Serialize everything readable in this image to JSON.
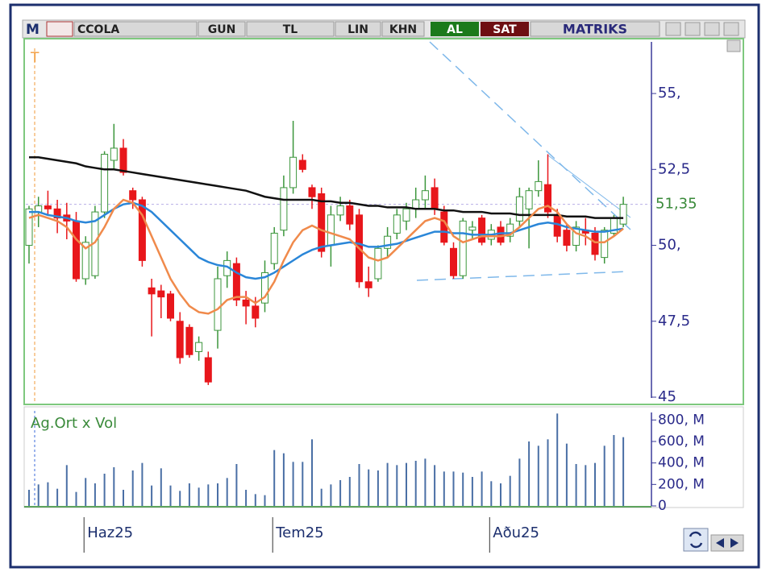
{
  "toolbar": {
    "menu": "M",
    "symbol": "CCOLA",
    "buttons": [
      "GUN",
      "TL",
      "LIN",
      "KHN"
    ],
    "buy": "AL",
    "sell": "SAT",
    "brand": "MATRIKS"
  },
  "chart_data": [
    {
      "type": "candlestick",
      "annotation": "T",
      "categories": [
        null,
        null,
        null,
        null,
        null,
        null,
        "Haz25",
        null,
        null,
        null,
        null,
        null,
        null,
        null,
        null,
        null,
        null,
        null,
        null,
        null,
        null,
        null,
        null,
        null,
        null,
        null,
        "Tem25",
        null,
        null,
        null,
        null,
        null,
        null,
        null,
        null,
        null,
        null,
        null,
        null,
        null,
        null,
        null,
        null,
        null,
        null,
        null,
        null,
        null,
        null,
        "Aðu25",
        null,
        null,
        null,
        null,
        null,
        null,
        null,
        null,
        null,
        null,
        null,
        null,
        null,
        null
      ],
      "open": [
        50.0,
        51.1,
        51.3,
        51.2,
        51.0,
        50.8,
        48.9,
        49.0,
        51.1,
        52.8,
        53.2,
        51.8,
        51.5,
        48.6,
        48.5,
        48.4,
        47.5,
        47.3,
        46.5,
        46.3,
        47.2,
        49.0,
        49.4,
        48.2,
        48.0,
        48.1,
        49.4,
        50.5,
        51.9,
        52.8,
        51.9,
        51.7,
        50.0,
        51.0,
        51.3,
        51.0,
        48.8,
        48.9,
        49.9,
        50.4,
        50.8,
        51.2,
        51.5,
        51.9,
        51.1,
        49.9,
        49.0,
        50.5,
        50.9,
        50.2,
        50.6,
        50.3,
        50.8,
        51.2,
        51.8,
        52.0,
        51.0,
        50.5,
        50.0,
        50.5,
        50.4,
        49.6,
        50.4,
        50.7
      ],
      "high": [
        51.3,
        51.6,
        51.8,
        51.5,
        51.4,
        51.1,
        50.3,
        51.3,
        53.1,
        54.0,
        53.5,
        51.9,
        51.6,
        48.9,
        48.7,
        48.5,
        47.8,
        47.4,
        47.0,
        46.5,
        49.3,
        49.8,
        49.6,
        48.5,
        48.3,
        49.5,
        50.6,
        52.3,
        54.1,
        53.0,
        52.0,
        51.9,
        51.3,
        51.6,
        51.5,
        51.2,
        49.3,
        50.0,
        50.6,
        51.2,
        51.4,
        51.9,
        52.3,
        52.2,
        51.3,
        50.1,
        50.9,
        50.8,
        51.0,
        50.7,
        50.8,
        50.9,
        51.9,
        51.9,
        52.8,
        53.0,
        51.2,
        50.7,
        50.8,
        50.9,
        50.6,
        50.6,
        51.0,
        51.6
      ],
      "low": [
        49.4,
        50.6,
        51.0,
        50.4,
        50.2,
        48.8,
        48.7,
        48.9,
        50.9,
        52.5,
        52.3,
        51.2,
        49.3,
        47.0,
        47.6,
        47.5,
        46.1,
        46.3,
        46.2,
        45.4,
        46.6,
        48.6,
        48.0,
        47.4,
        47.3,
        47.8,
        49.2,
        50.3,
        51.7,
        52.4,
        51.2,
        49.6,
        49.3,
        50.8,
        50.5,
        48.6,
        48.3,
        48.8,
        49.6,
        50.2,
        50.5,
        50.9,
        51.2,
        51.0,
        50.0,
        48.9,
        48.9,
        50.2,
        50.0,
        50.0,
        50.0,
        50.1,
        50.6,
        49.9,
        51.6,
        50.9,
        50.1,
        49.8,
        49.8,
        50.0,
        49.5,
        49.4,
        50.3,
        50.6
      ],
      "close": [
        51.2,
        51.3,
        51.2,
        50.9,
        50.8,
        48.9,
        50.1,
        51.1,
        53.0,
        53.2,
        52.4,
        51.5,
        49.5,
        48.4,
        48.3,
        47.6,
        46.3,
        46.4,
        46.8,
        45.5,
        48.9,
        49.5,
        48.2,
        48.0,
        47.6,
        49.1,
        50.4,
        51.9,
        52.9,
        52.5,
        51.6,
        49.8,
        51.0,
        51.3,
        50.7,
        48.8,
        48.6,
        49.9,
        50.3,
        51.0,
        51.2,
        51.5,
        51.8,
        51.2,
        50.1,
        49.0,
        50.8,
        50.6,
        50.1,
        50.5,
        50.1,
        50.7,
        51.6,
        51.8,
        52.1,
        51.1,
        50.3,
        50.0,
        50.6,
        50.4,
        49.7,
        50.5,
        50.9,
        51.35
      ],
      "up_color": "#3c963c",
      "down_color": "#e8161b",
      "series": [
        {
          "color": "#111111",
          "values": [
            52.9,
            52.9,
            52.85,
            52.8,
            52.75,
            52.7,
            52.6,
            52.55,
            52.5,
            52.5,
            52.45,
            52.4,
            52.35,
            52.3,
            52.25,
            52.2,
            52.15,
            52.1,
            52.05,
            52.0,
            51.95,
            51.9,
            51.85,
            51.8,
            51.7,
            51.6,
            51.55,
            51.5,
            51.5,
            51.5,
            51.5,
            51.45,
            51.45,
            51.4,
            51.4,
            51.35,
            51.3,
            51.3,
            51.25,
            51.25,
            51.25,
            51.2,
            51.2,
            51.2,
            51.15,
            51.15,
            51.1,
            51.1,
            51.1,
            51.05,
            51.05,
            51.05,
            51.0,
            51.0,
            51.0,
            51.0,
            51.0,
            50.95,
            50.95,
            50.95,
            50.9,
            50.9,
            50.9,
            50.9
          ]
        },
        {
          "color": "#2a86d8",
          "values": [
            51.1,
            51.1,
            51.0,
            50.95,
            50.9,
            50.8,
            50.75,
            50.8,
            51.0,
            51.2,
            51.35,
            51.4,
            51.3,
            51.1,
            50.8,
            50.5,
            50.2,
            49.9,
            49.6,
            49.45,
            49.35,
            49.3,
            49.1,
            48.95,
            48.9,
            48.95,
            49.1,
            49.3,
            49.5,
            49.7,
            49.85,
            49.95,
            50.0,
            50.05,
            50.1,
            50.05,
            49.95,
            49.95,
            50.0,
            50.05,
            50.15,
            50.25,
            50.35,
            50.45,
            50.45,
            50.4,
            50.4,
            50.35,
            50.35,
            50.35,
            50.4,
            50.4,
            50.5,
            50.6,
            50.7,
            50.75,
            50.7,
            50.6,
            50.55,
            50.5,
            50.45,
            50.45,
            50.5,
            50.55
          ]
        },
        {
          "color": "#f08a4b",
          "values": [
            50.9,
            51.0,
            50.9,
            50.8,
            50.6,
            50.2,
            49.9,
            50.1,
            50.6,
            51.2,
            51.5,
            51.4,
            51.0,
            50.3,
            49.6,
            48.9,
            48.4,
            48.0,
            47.8,
            47.75,
            47.9,
            48.2,
            48.3,
            48.3,
            48.1,
            48.3,
            48.8,
            49.5,
            50.1,
            50.5,
            50.65,
            50.5,
            50.4,
            50.3,
            50.2,
            49.9,
            49.6,
            49.5,
            49.6,
            49.9,
            50.2,
            50.5,
            50.8,
            50.9,
            50.8,
            50.3,
            50.1,
            50.2,
            50.3,
            50.3,
            50.3,
            50.35,
            50.6,
            50.9,
            51.2,
            51.3,
            51.1,
            50.7,
            50.4,
            50.3,
            50.1,
            50.1,
            50.3,
            50.55
          ]
        }
      ],
      "last_price": {
        "value": 51.35,
        "label": "51,35"
      },
      "ylim": [
        45,
        56.7
      ],
      "yticks": [
        {
          "value": 55,
          "label": "55,"
        },
        {
          "value": 52.5,
          "label": "52,5"
        },
        {
          "value": 50,
          "label": "50,"
        },
        {
          "value": 47.5,
          "label": "47,5"
        },
        45
      ]
    },
    {
      "type": "bar",
      "title": "Ag.Ort x Vol",
      "color": "#4a6fa5",
      "values": [
        150,
        200,
        220,
        160,
        380,
        130,
        260,
        210,
        300,
        360,
        150,
        330,
        400,
        190,
        350,
        190,
        140,
        210,
        170,
        200,
        210,
        260,
        390,
        150,
        110,
        100,
        520,
        490,
        410,
        410,
        620,
        160,
        200,
        240,
        270,
        390,
        340,
        330,
        400,
        380,
        400,
        420,
        440,
        380,
        320,
        320,
        310,
        270,
        320,
        230,
        210,
        280,
        440,
        600,
        560,
        620,
        860,
        580,
        390,
        380,
        400,
        560,
        660,
        640
      ],
      "ylim": [
        0,
        870
      ],
      "yticks": [
        0,
        {
          "value": 200,
          "label": "200, M"
        },
        {
          "value": 400,
          "label": "400, M"
        },
        {
          "value": 600,
          "label": "600, M"
        },
        {
          "value": 800,
          "label": "800, M"
        }
      ]
    }
  ]
}
